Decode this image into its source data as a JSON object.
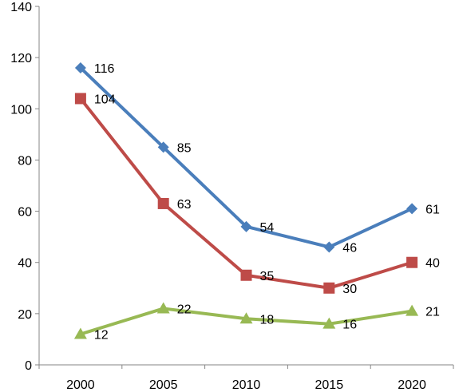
{
  "chart_data": {
    "type": "line",
    "title": "",
    "xlabel": "",
    "ylabel": "",
    "categories": [
      "2000",
      "2005",
      "2010",
      "2015",
      "2020"
    ],
    "ylim": [
      0,
      140
    ],
    "yticks": [
      0,
      20,
      40,
      60,
      80,
      100,
      120,
      140
    ],
    "grid": false,
    "legend": "none",
    "series": [
      {
        "values": [
          116,
          85,
          54,
          46,
          61
        ],
        "color": "#4a7ebb",
        "marker": "diamond"
      },
      {
        "values": [
          104,
          63,
          35,
          30,
          40
        ],
        "color": "#be4b48",
        "marker": "square"
      },
      {
        "values": [
          12,
          22,
          18,
          16,
          21
        ],
        "color": "#98b954",
        "marker": "triangle"
      }
    ]
  }
}
